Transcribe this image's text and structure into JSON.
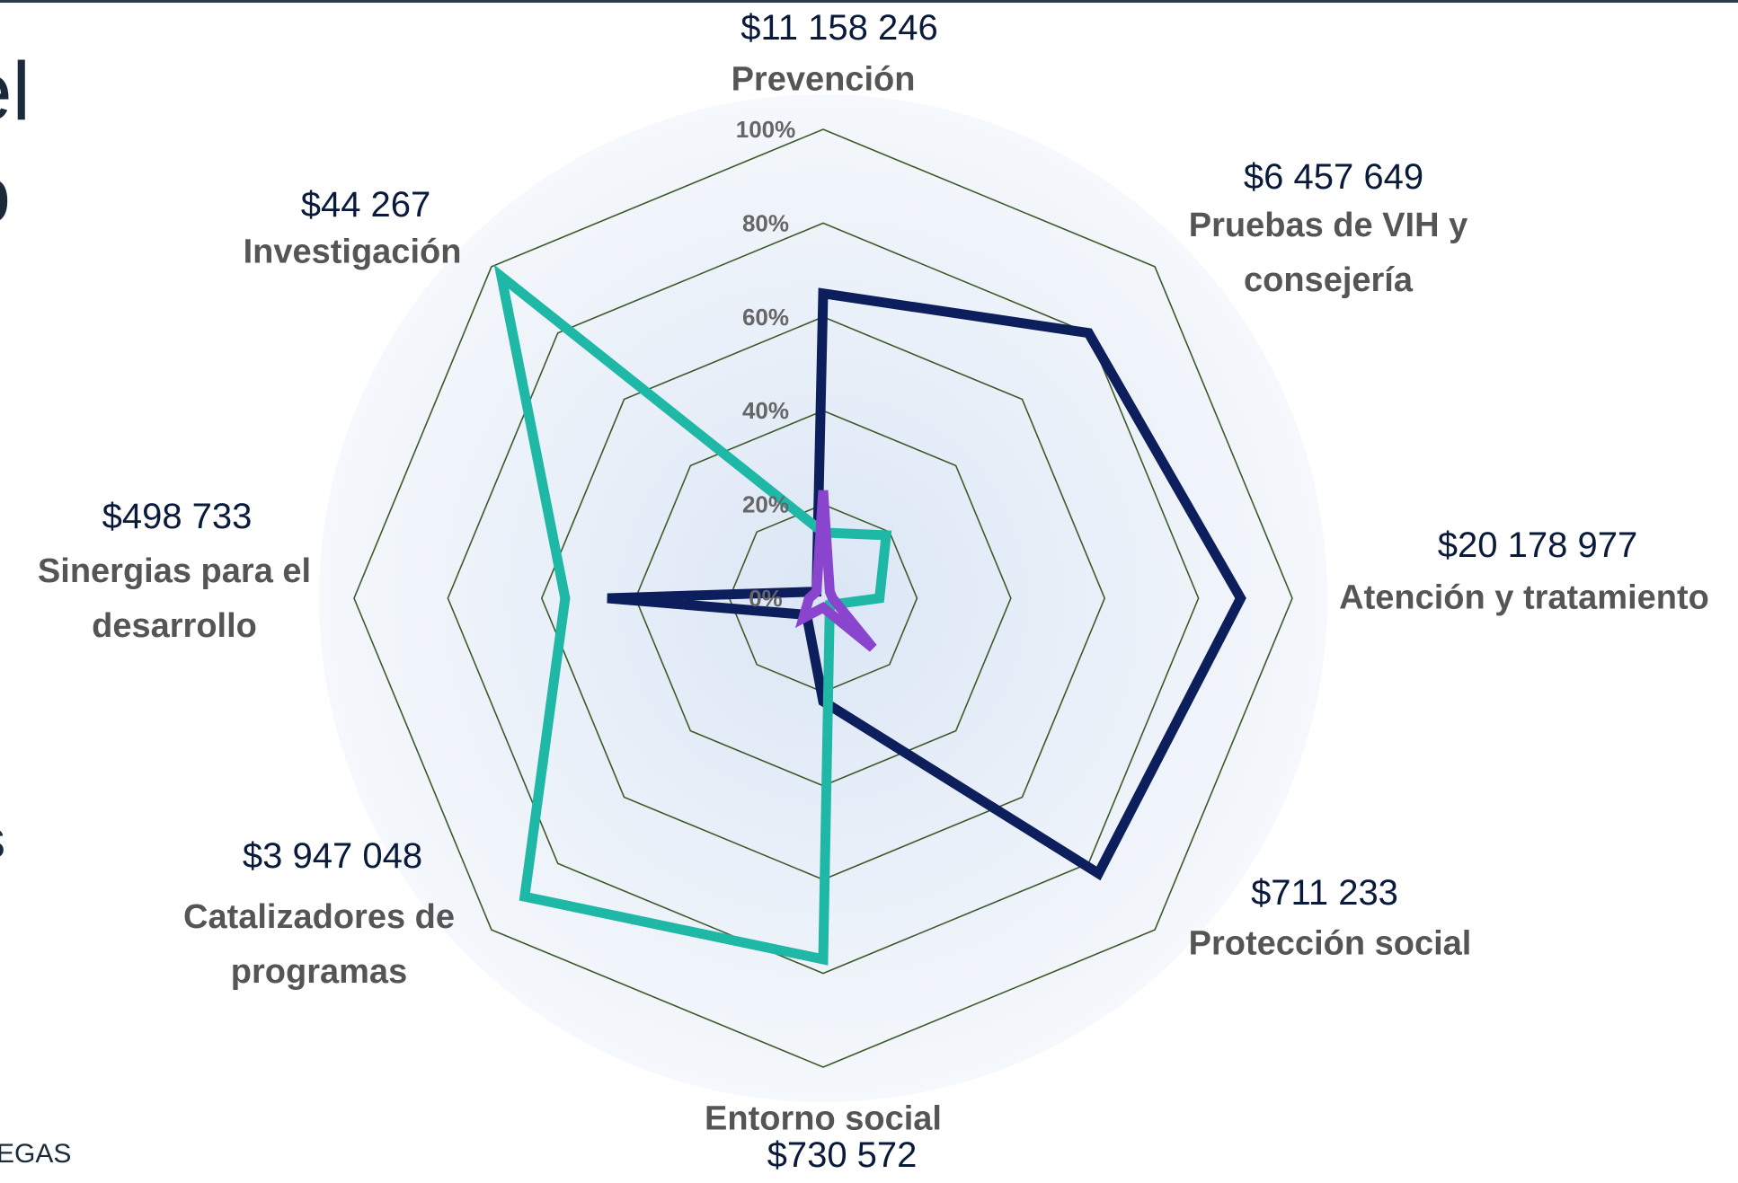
{
  "chart_data": {
    "type": "radar",
    "categories": [
      "Prevención",
      "Pruebas de VIH y consejería",
      "Atención y tratamiento",
      "Protección social",
      "Entorno social",
      "Catalizadores de programas",
      "Sinergias para el desarrollo",
      "Investigación"
    ],
    "amounts": [
      "$11 158 246",
      "$6 457 649",
      "$20 178 977",
      "$711 233",
      "$730 572",
      "$3 947 048",
      "$498 733",
      "$44 267"
    ],
    "series": [
      {
        "color": "#0c1f5c",
        "values": [
          65,
          80,
          89,
          83,
          22,
          5,
          46,
          2
        ]
      },
      {
        "color": "#1fb8a6",
        "values": [
          14,
          19,
          12,
          2,
          77,
          90,
          55,
          97
        ]
      },
      {
        "color": "#8a45cf",
        "values": [
          23,
          2,
          2,
          15,
          2,
          6,
          3,
          2
        ]
      }
    ],
    "rlim": [
      0,
      100
    ],
    "rticks": [
      {
        "value": 0,
        "label": "0%"
      },
      {
        "value": 20,
        "label": "20%"
      },
      {
        "value": 40,
        "label": "40%"
      },
      {
        "value": 60,
        "label": "60%"
      },
      {
        "value": 80,
        "label": "80%"
      },
      {
        "value": 100,
        "label": "100%"
      }
    ],
    "grid": true,
    "grid_color": "#3d5a2a"
  },
  "left_fragments": [
    "el",
    "o",
    "s",
    "EGAS"
  ]
}
